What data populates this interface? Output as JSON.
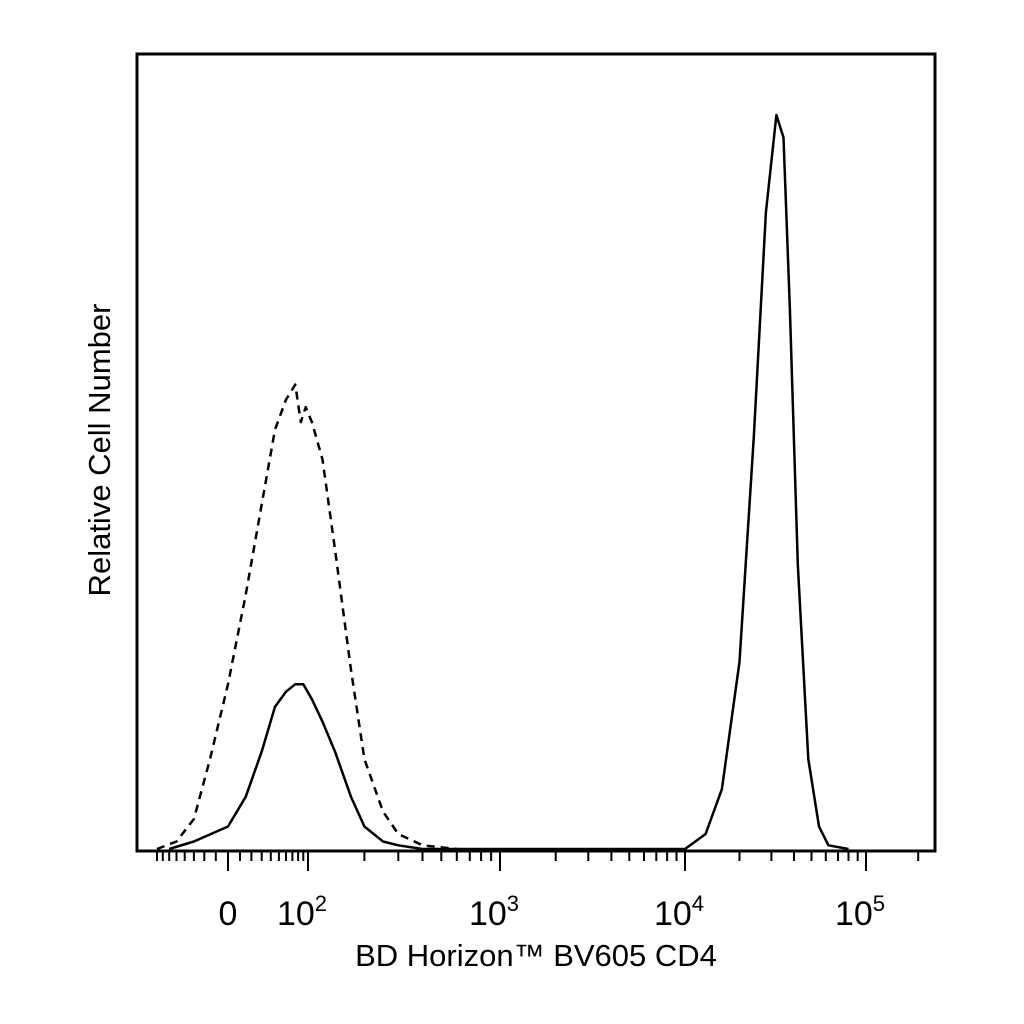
{
  "chart_data": {
    "type": "line",
    "title": "",
    "xlabel": "BD Horizon™ BV605 CD4",
    "ylabel": "Relative Cell Number",
    "x_scale": "biexponential (linear near 0, log above)",
    "xlim": [
      -80,
      250000
    ],
    "ylim": [
      0,
      100
    ],
    "grid": false,
    "legend": "none",
    "x_ticks": [
      {
        "value": 0,
        "label": "0",
        "exp": ""
      },
      {
        "value": 100,
        "label": "10",
        "exp": "2"
      },
      {
        "value": 1000,
        "label": "10",
        "exp": "3"
      },
      {
        "value": 10000,
        "label": "10",
        "exp": "4"
      },
      {
        "value": 100000,
        "label": "10",
        "exp": "5"
      }
    ],
    "series": [
      {
        "style": "dashed",
        "x": [
          -80,
          -50,
          -30,
          -15,
          0,
          15,
          30,
          45,
          60,
          75,
          85,
          95,
          105,
          120,
          140,
          170,
          200,
          250,
          300,
          400,
          600
        ],
        "y": [
          0,
          1,
          4,
          12,
          22,
          34,
          46,
          56,
          60,
          62,
          57,
          59,
          57,
          52,
          40,
          24,
          12,
          5,
          2,
          0.5,
          0
        ]
      },
      {
        "style": "solid",
        "x": [
          -60,
          -30,
          0,
          15,
          30,
          45,
          60,
          75,
          90,
          105,
          120,
          140,
          170,
          200,
          250,
          300,
          400,
          600,
          10000,
          13000,
          16000,
          20000,
          24000,
          28000,
          32000,
          35000,
          38000,
          42000,
          48000,
          55000,
          62000,
          80000
        ],
        "y": [
          0,
          1,
          3,
          7,
          13,
          19,
          21,
          22,
          22,
          20,
          17,
          13,
          7,
          3,
          1,
          0.5,
          0,
          0,
          0,
          2,
          8,
          25,
          55,
          85,
          98,
          95,
          72,
          38,
          12,
          3,
          0.5,
          0
        ]
      }
    ]
  }
}
